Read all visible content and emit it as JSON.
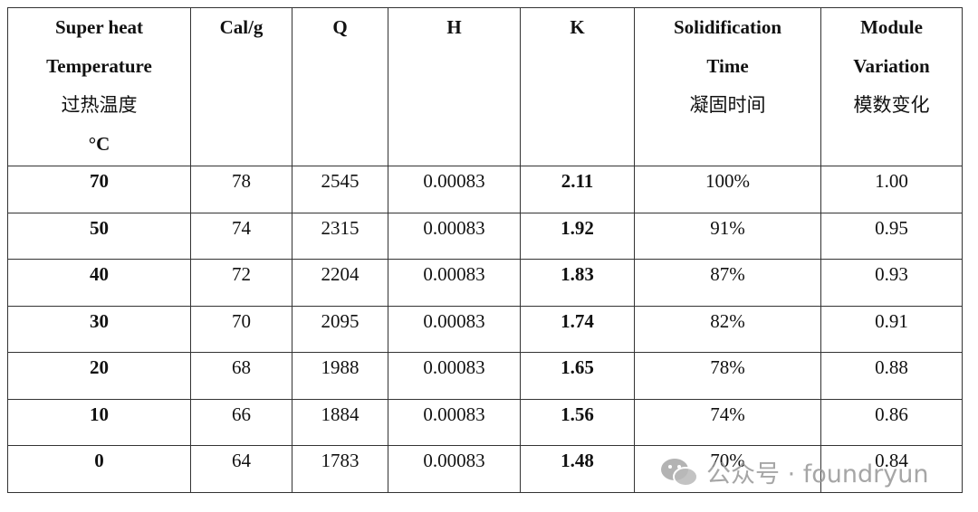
{
  "table": {
    "header": [
      [
        "Super heat",
        "Temperature",
        "过热温度",
        "°C"
      ],
      [
        "Cal/g"
      ],
      [
        "Q"
      ],
      [
        "H"
      ],
      [
        "K"
      ],
      [
        "Solidification",
        "Time",
        "凝固时间"
      ],
      [
        "Module",
        "Variation",
        "模数变化"
      ]
    ],
    "rows": [
      [
        "70",
        "78",
        "2545",
        "0.00083",
        "2.11",
        "100%",
        "1.00"
      ],
      [
        "50",
        "74",
        "2315",
        "0.00083",
        "1.92",
        "91%",
        "0.95"
      ],
      [
        "40",
        "72",
        "2204",
        "0.00083",
        "1.83",
        "87%",
        "0.93"
      ],
      [
        "30",
        "70",
        "2095",
        "0.00083",
        "1.74",
        "82%",
        "0.91"
      ],
      [
        "20",
        "68",
        "1988",
        "0.00083",
        "1.65",
        "78%",
        "0.88"
      ],
      [
        "10",
        "66",
        "1884",
        "0.00083",
        "1.56",
        "74%",
        "0.86"
      ],
      [
        "0",
        "64",
        "1783",
        "0.00083",
        "1.48",
        "70%",
        "0.84"
      ]
    ]
  },
  "watermark": "公众号 · foundryun"
}
